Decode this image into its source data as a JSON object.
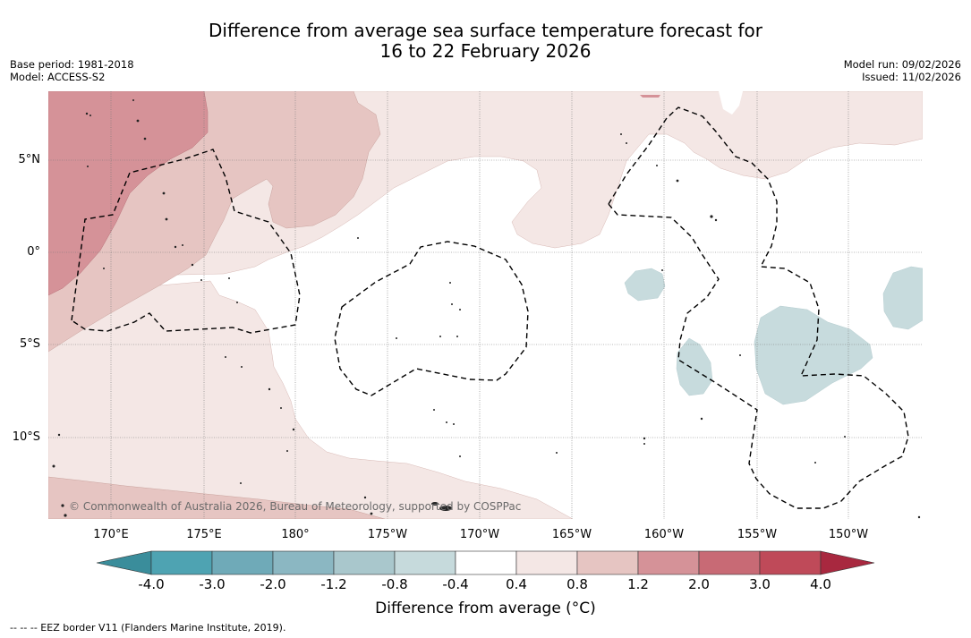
{
  "header": {
    "title_line1": "Difference from average sea surface temperature forecast for",
    "title_line2": "16 to 22 February 2026",
    "base_period": "Base period: 1981-2018",
    "model": "Model: ACCESS-S2",
    "model_run": "Model run: 09/02/2026",
    "issued": "Issued: 11/02/2026"
  },
  "map": {
    "longitude_labels": [
      "170°E",
      "175°E",
      "180°",
      "175°W",
      "170°W",
      "165°W",
      "160°W",
      "155°W",
      "150°W"
    ],
    "latitude_labels": [
      "5°N",
      "0°",
      "5°S",
      "10°S"
    ],
    "copyright": "© Commonwealth of Australia 2026, Bureau of Meteorology, supported by COSPPac",
    "colors": {
      "anom_0_4_0_8": "#f4e7e5",
      "anom_0_8_1_2": "#e6c5c2",
      "anom_1_2_2_0": "#d59298",
      "anom_neg_0_8_neg_0_4": "#c7dbdd"
    }
  },
  "colorbar": {
    "tick_labels": [
      "-4.0",
      "-3.0",
      "-2.0",
      "-1.2",
      "-0.8",
      "-0.4",
      "0.4",
      "0.8",
      "1.2",
      "2.0",
      "3.0",
      "4.0"
    ],
    "colors": [
      "#3a8d9b",
      "#4ea3b2",
      "#6faab8",
      "#8bb7c2",
      "#a9c7cc",
      "#c6dadc",
      "#ffffff",
      "#f4e7e5",
      "#e6c5c2",
      "#d59298",
      "#c86a75",
      "#bf4a59",
      "#a8283f"
    ],
    "title": "Difference from average (°C)"
  },
  "footnote": "--  --  -- EEZ border V11 (Flanders Marine Institute, 2019)."
}
